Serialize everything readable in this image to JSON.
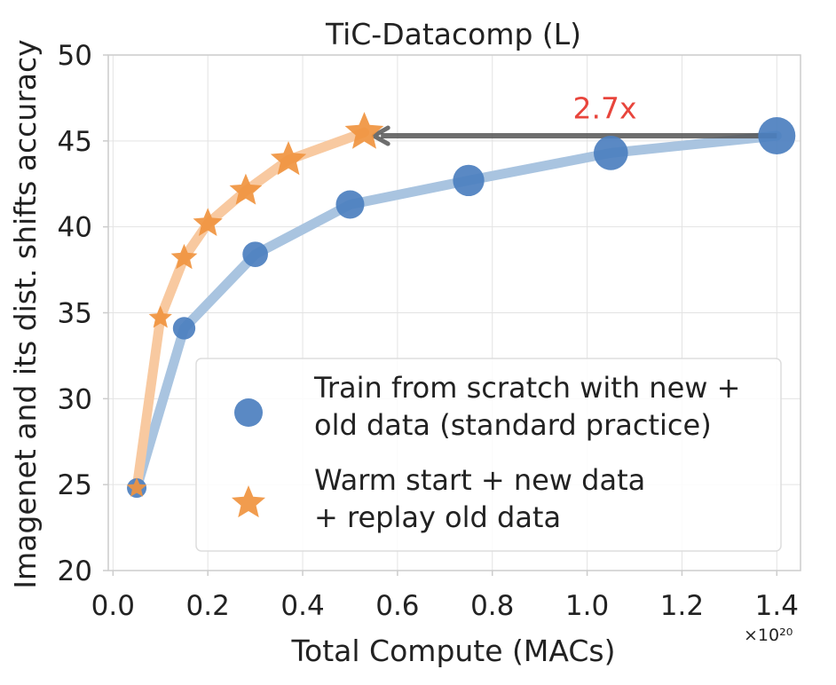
{
  "chart_data": {
    "type": "line",
    "title": "TiC-Datacomp (L)",
    "xlabel": "Total Compute (MACs)",
    "ylabel": "Imagenet and its dist. shifts accuracy",
    "x_offset_label": "×10²⁰",
    "xlim": [
      -0.01,
      1.45
    ],
    "ylim": [
      20,
      50
    ],
    "xticks": [
      0.0,
      0.2,
      0.4,
      0.6,
      0.8,
      1.0,
      1.2,
      1.4
    ],
    "xtick_labels": [
      "0.0",
      "0.2",
      "0.4",
      "0.6",
      "0.8",
      "1.0",
      "1.2",
      "1.4"
    ],
    "yticks": [
      20,
      25,
      30,
      35,
      40,
      45,
      50
    ],
    "ytick_labels": [
      "20",
      "25",
      "30",
      "35",
      "40",
      "45",
      "50"
    ],
    "grid": true,
    "legend_position": "lower-right",
    "series": [
      {
        "name_lines": [
          "Train from scratch with new +",
          "old data (standard practice)"
        ],
        "marker": "circle",
        "color": "#4c7fbf",
        "line_color": "#a9c4e0",
        "x": [
          0.05,
          0.15,
          0.3,
          0.5,
          0.75,
          1.05,
          1.4
        ],
        "y": [
          24.8,
          34.1,
          38.4,
          41.3,
          42.7,
          44.3,
          45.3
        ]
      },
      {
        "name_lines": [
          "Warm start + new data",
          "+ replay old data"
        ],
        "marker": "star",
        "color": "#f0943f",
        "line_color": "#f8c9a0",
        "x": [
          0.05,
          0.1,
          0.15,
          0.2,
          0.28,
          0.37,
          0.53
        ],
        "y": [
          24.8,
          34.7,
          38.2,
          40.2,
          42.1,
          43.9,
          45.5
        ]
      }
    ],
    "annotations": [
      {
        "text": "2.7x",
        "color": "#e8453c",
        "x": 0.97,
        "y": 46.3,
        "arrow_from": [
          1.4,
          45.3
        ],
        "arrow_to": [
          0.55,
          45.3
        ],
        "arrow_color": "#555555"
      }
    ]
  }
}
